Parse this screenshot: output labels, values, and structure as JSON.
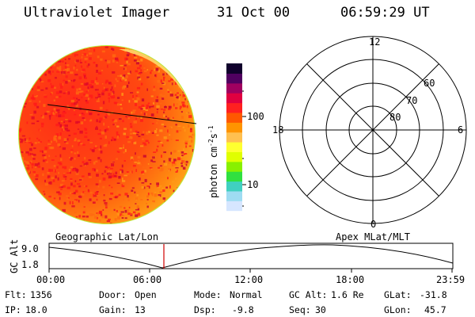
{
  "header": {
    "instrument": "Ultraviolet Imager",
    "date": "31 Oct 00",
    "time": "06:59:29 UT"
  },
  "colorbar": {
    "unit_label": "photon cm",
    "unit_sup1": "-2",
    "unit_s": "s",
    "unit_sup2": "-1",
    "ticks": [
      "100",
      "10"
    ],
    "colors": [
      "#ffffff",
      "#d6e6ff",
      "#9edcf2",
      "#40d0c0",
      "#30e040",
      "#88f000",
      "#e0ff00",
      "#ffff30",
      "#ffc050",
      "#ff9400",
      "#ff5800",
      "#ff2020",
      "#e00040",
      "#a00060",
      "#500060",
      "#10002c"
    ]
  },
  "polar_plot": {
    "mlt_labels": {
      "top": "12",
      "left": "18",
      "right": "6",
      "bottom": "0"
    },
    "lat_labels": [
      "60",
      "70",
      "80"
    ]
  },
  "orbit_panel": {
    "left_title": "Geographic Lat/Lon",
    "right_title": "Apex MLat/MLT",
    "y_axis_label": "GC Alt",
    "y_ticks": [
      "9.0",
      "1.8"
    ],
    "x_ticks": [
      "00:00",
      "06:00",
      "12:00",
      "18:00",
      "23:59"
    ]
  },
  "info": {
    "row1": [
      {
        "label": "Flt:",
        "value": "1356"
      },
      {
        "label": "Door:",
        "value": "Open"
      },
      {
        "label": "Mode:",
        "value": "Normal"
      },
      {
        "label": "GC Alt:",
        "value": "1.6 Re"
      },
      {
        "label": "GLat:",
        "value": "-31.8"
      }
    ],
    "row2": [
      {
        "label": "IP:",
        "value": "18.0"
      },
      {
        "label": "Gain:",
        "value": "13"
      },
      {
        "label": "Dsp:",
        "value": "-9.8"
      },
      {
        "label": "Seq:",
        "value": "30"
      },
      {
        "label": "GLon:",
        "value": "45.7"
      }
    ]
  }
}
